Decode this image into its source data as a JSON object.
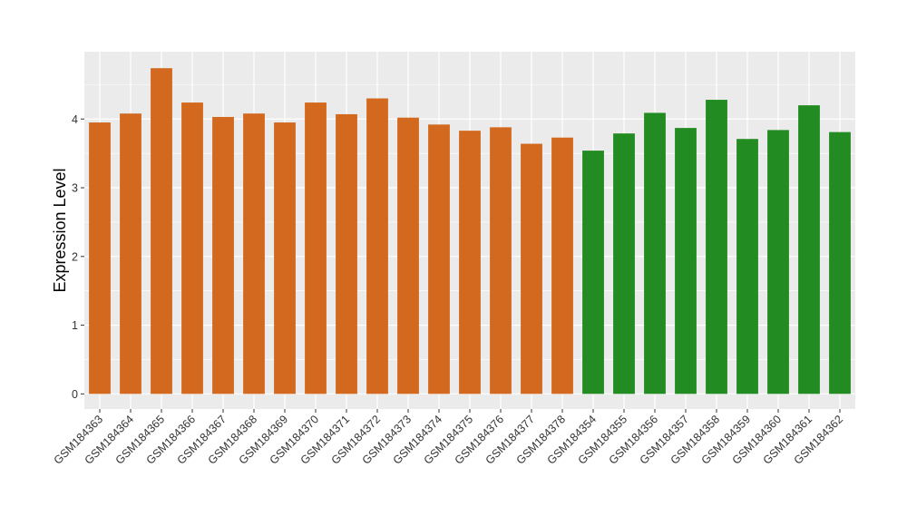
{
  "chart_data": {
    "type": "bar",
    "title": "",
    "xlabel": "",
    "ylabel": "Expression Level",
    "ylim": [
      -0.22,
      4.98
    ],
    "yticks": [
      0,
      1,
      2,
      3,
      4
    ],
    "grid": true,
    "legend": "none",
    "panel_background": "#EBEBEB",
    "grid_color": "#FFFFFF",
    "categories": [
      "GSM184363",
      "GSM184364",
      "GSM184365",
      "GSM184366",
      "GSM184367",
      "GSM184368",
      "GSM184369",
      "GSM184370",
      "GSM184371",
      "GSM184372",
      "GSM184373",
      "GSM184374",
      "GSM184375",
      "GSM184376",
      "GSM184377",
      "GSM184378",
      "GSM184354",
      "GSM184355",
      "GSM184356",
      "GSM184357",
      "GSM184358",
      "GSM184359",
      "GSM184360",
      "GSM184361",
      "GSM184362"
    ],
    "values": [
      3.95,
      4.08,
      4.74,
      4.24,
      4.03,
      4.08,
      3.95,
      4.24,
      4.07,
      4.3,
      4.02,
      3.92,
      3.83,
      3.88,
      3.64,
      3.73,
      3.54,
      3.79,
      4.09,
      3.87,
      4.28,
      3.71,
      3.84,
      4.2,
      3.81
    ],
    "colors": [
      "#D2691E",
      "#D2691E",
      "#D2691E",
      "#D2691E",
      "#D2691E",
      "#D2691E",
      "#D2691E",
      "#D2691E",
      "#D2691E",
      "#D2691E",
      "#D2691E",
      "#D2691E",
      "#D2691E",
      "#D2691E",
      "#D2691E",
      "#D2691E",
      "#228B22",
      "#228B22",
      "#228B22",
      "#228B22",
      "#228B22",
      "#228B22",
      "#228B22",
      "#228B22",
      "#228B22"
    ]
  }
}
